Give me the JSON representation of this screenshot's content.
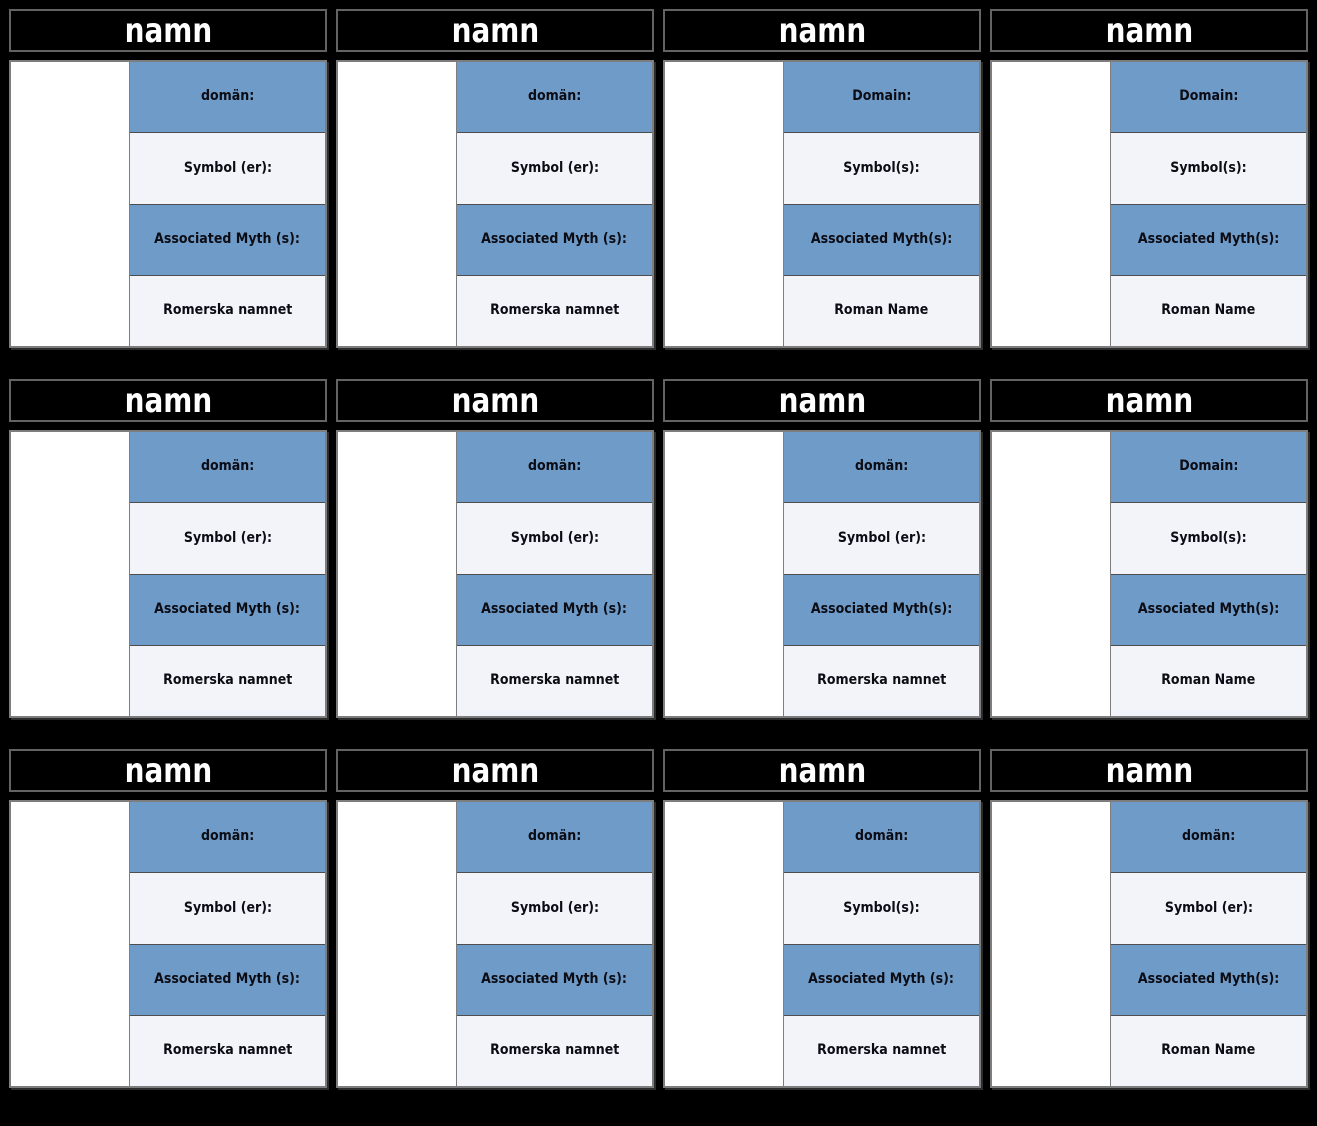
{
  "palette": {
    "page_background": "#000000",
    "header_background": "#000000",
    "header_text": "#ffffff",
    "header_border": "#636363",
    "card_border": "#7d7d7d",
    "row_blue": "#6f9bc8",
    "row_light": "#f2f4fa",
    "image_cell": "#ffffff",
    "label_text": "#0c0c14"
  },
  "cards": [
    {
      "title": "namn",
      "rows": [
        "domän:",
        "Symbol (er):",
        "Associated Myth (s):",
        "Romerska namnet"
      ]
    },
    {
      "title": "namn",
      "rows": [
        "domän:",
        "Symbol (er):",
        "Associated Myth (s):",
        "Romerska namnet"
      ]
    },
    {
      "title": "namn",
      "rows": [
        "Domain:",
        "Symbol(s):",
        "Associated Myth(s):",
        "Roman Name"
      ]
    },
    {
      "title": "namn",
      "rows": [
        "Domain:",
        "Symbol(s):",
        "Associated Myth(s):",
        "Roman Name"
      ]
    },
    {
      "title": "namn",
      "rows": [
        "domän:",
        "Symbol (er):",
        "Associated Myth (s):",
        "Romerska namnet"
      ]
    },
    {
      "title": "namn",
      "rows": [
        "domän:",
        "Symbol (er):",
        "Associated Myth (s):",
        "Romerska namnet"
      ]
    },
    {
      "title": "namn",
      "rows": [
        "domän:",
        "Symbol (er):",
        "Associated Myth(s):",
        "Romerska namnet"
      ]
    },
    {
      "title": "namn",
      "rows": [
        "Domain:",
        "Symbol(s):",
        "Associated Myth(s):",
        "Roman Name"
      ]
    },
    {
      "title": "namn",
      "rows": [
        "domän:",
        "Symbol (er):",
        "Associated Myth (s):",
        "Romerska namnet"
      ]
    },
    {
      "title": "namn",
      "rows": [
        "domän:",
        "Symbol (er):",
        "Associated Myth (s):",
        "Romerska namnet"
      ]
    },
    {
      "title": "namn",
      "rows": [
        "domän:",
        "Symbol(s):",
        "Associated Myth (s):",
        "Romerska namnet"
      ]
    },
    {
      "title": "namn",
      "rows": [
        "domän:",
        "Symbol (er):",
        "Associated Myth(s):",
        "Roman Name"
      ]
    }
  ]
}
